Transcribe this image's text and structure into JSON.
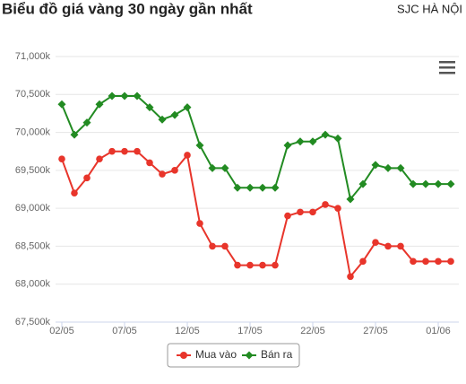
{
  "chart_data": {
    "type": "line",
    "title": "Biểu đồ giá vàng 30 ngày gần nhất",
    "subtitle": "SJC HÀ NỘI",
    "categories": [
      "02/05",
      null,
      null,
      null,
      null,
      "07/05",
      null,
      null,
      null,
      null,
      "12/05",
      null,
      null,
      null,
      null,
      "17/05",
      null,
      null,
      null,
      null,
      "22/05",
      null,
      null,
      null,
      null,
      "27/05",
      null,
      null,
      null,
      null,
      "01/06",
      null
    ],
    "series": [
      {
        "name": "Mua vào",
        "color": "#e8352b",
        "values": [
          69650,
          69200,
          69400,
          69650,
          69750,
          69750,
          69750,
          69600,
          69450,
          69500,
          69700,
          68800,
          68500,
          68500,
          68250,
          68250,
          68250,
          68250,
          68900,
          68950,
          68950,
          69050,
          69000,
          68100,
          68300,
          68550,
          68500,
          68500,
          68300,
          68300,
          68300,
          68300
        ]
      },
      {
        "name": "Bán ra",
        "color": "#228b22",
        "values": [
          70370,
          69970,
          70130,
          70370,
          70480,
          70480,
          70480,
          70330,
          70170,
          70230,
          70330,
          69830,
          69530,
          69530,
          69270,
          69270,
          69270,
          69270,
          69830,
          69880,
          69880,
          69970,
          69920,
          69120,
          69320,
          69570,
          69530,
          69530,
          69320,
          69320,
          69320,
          69320
        ]
      }
    ],
    "ylim": [
      67500,
      71000
    ],
    "yticks": [
      {
        "value": 67500,
        "label": "67,500k"
      },
      {
        "value": 68000,
        "label": "68,000k"
      },
      {
        "value": 68500,
        "label": "68,500k"
      },
      {
        "value": 69000,
        "label": "69,000k"
      },
      {
        "value": 69500,
        "label": "69,500k"
      },
      {
        "value": 70000,
        "label": "70,000k"
      },
      {
        "value": 70500,
        "label": "70,500k"
      },
      {
        "value": 71000,
        "label": "71,000k"
      }
    ],
    "grid": true
  }
}
